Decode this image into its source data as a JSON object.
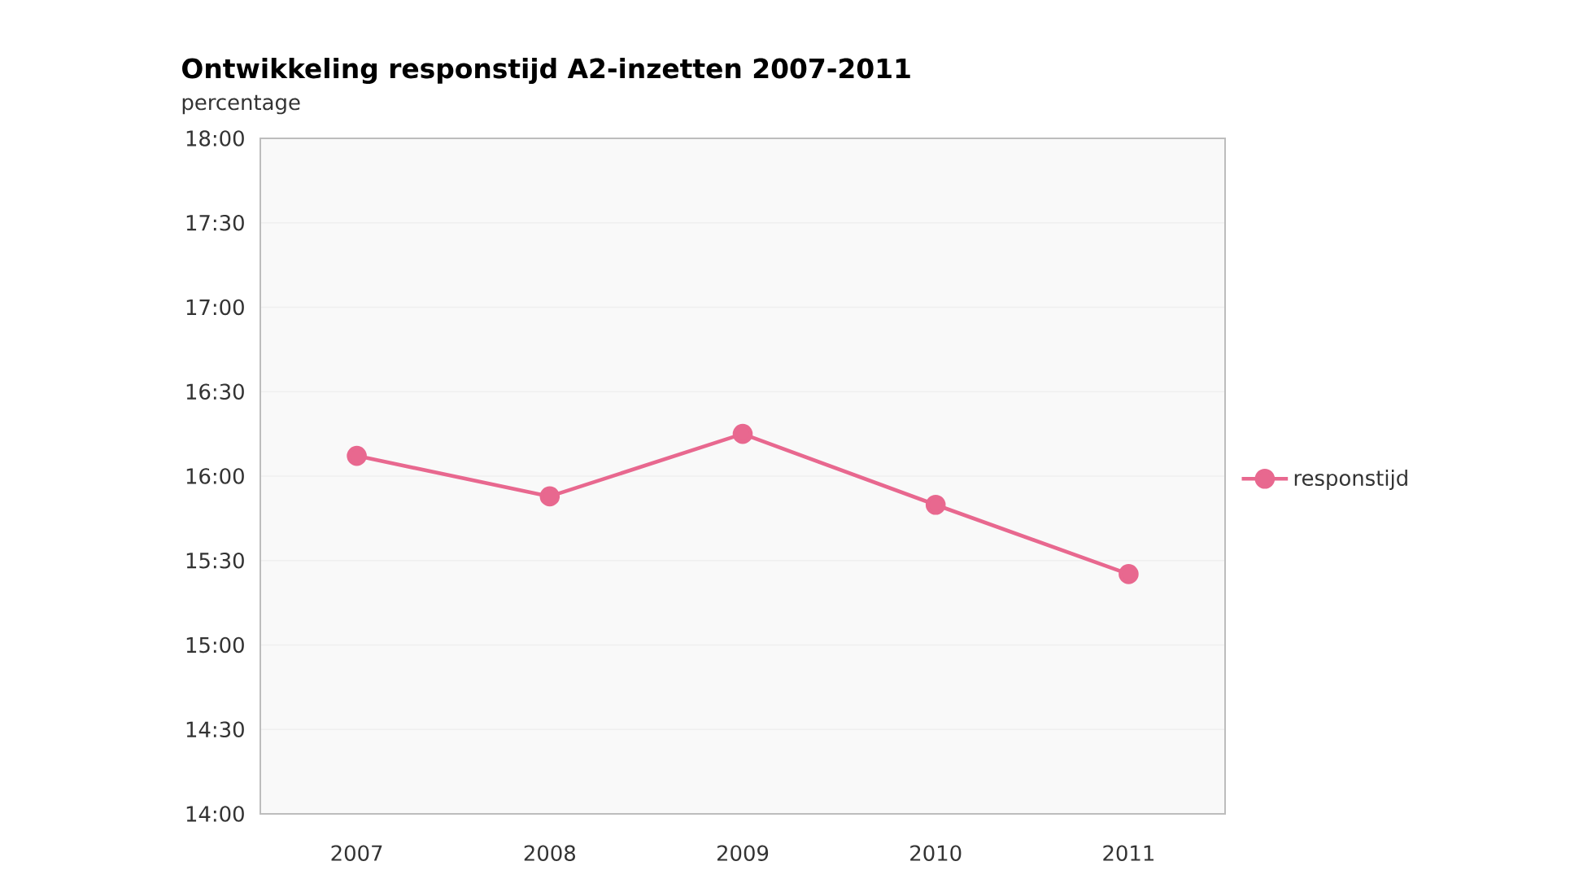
{
  "chart_data": {
    "type": "line",
    "title": "Ontwikkeling responstijd A2-inzetten 2007-2011",
    "ylabel": "percentage",
    "categories": [
      "2007",
      "2008",
      "2009",
      "2010",
      "2011"
    ],
    "series": [
      {
        "name": "responstijd",
        "color": "#e8688f",
        "values": [
          16.12,
          15.88,
          16.25,
          15.83,
          15.42
        ]
      }
    ],
    "ylim": [
      14,
      18
    ],
    "yticks": [
      {
        "value": 14,
        "label": "14:00"
      },
      {
        "value": 14.5,
        "label": "14:30"
      },
      {
        "value": 15,
        "label": "15:00"
      },
      {
        "value": 15.5,
        "label": "15:30"
      },
      {
        "value": 16,
        "label": "16:00"
      },
      {
        "value": 16.5,
        "label": "16:30"
      },
      {
        "value": 17,
        "label": "17:00"
      },
      {
        "value": 17.5,
        "label": "17:30"
      },
      {
        "value": 18,
        "label": "18:00"
      }
    ],
    "grid": "y",
    "legend": "right",
    "marker": "circle",
    "line_style": "solid"
  }
}
